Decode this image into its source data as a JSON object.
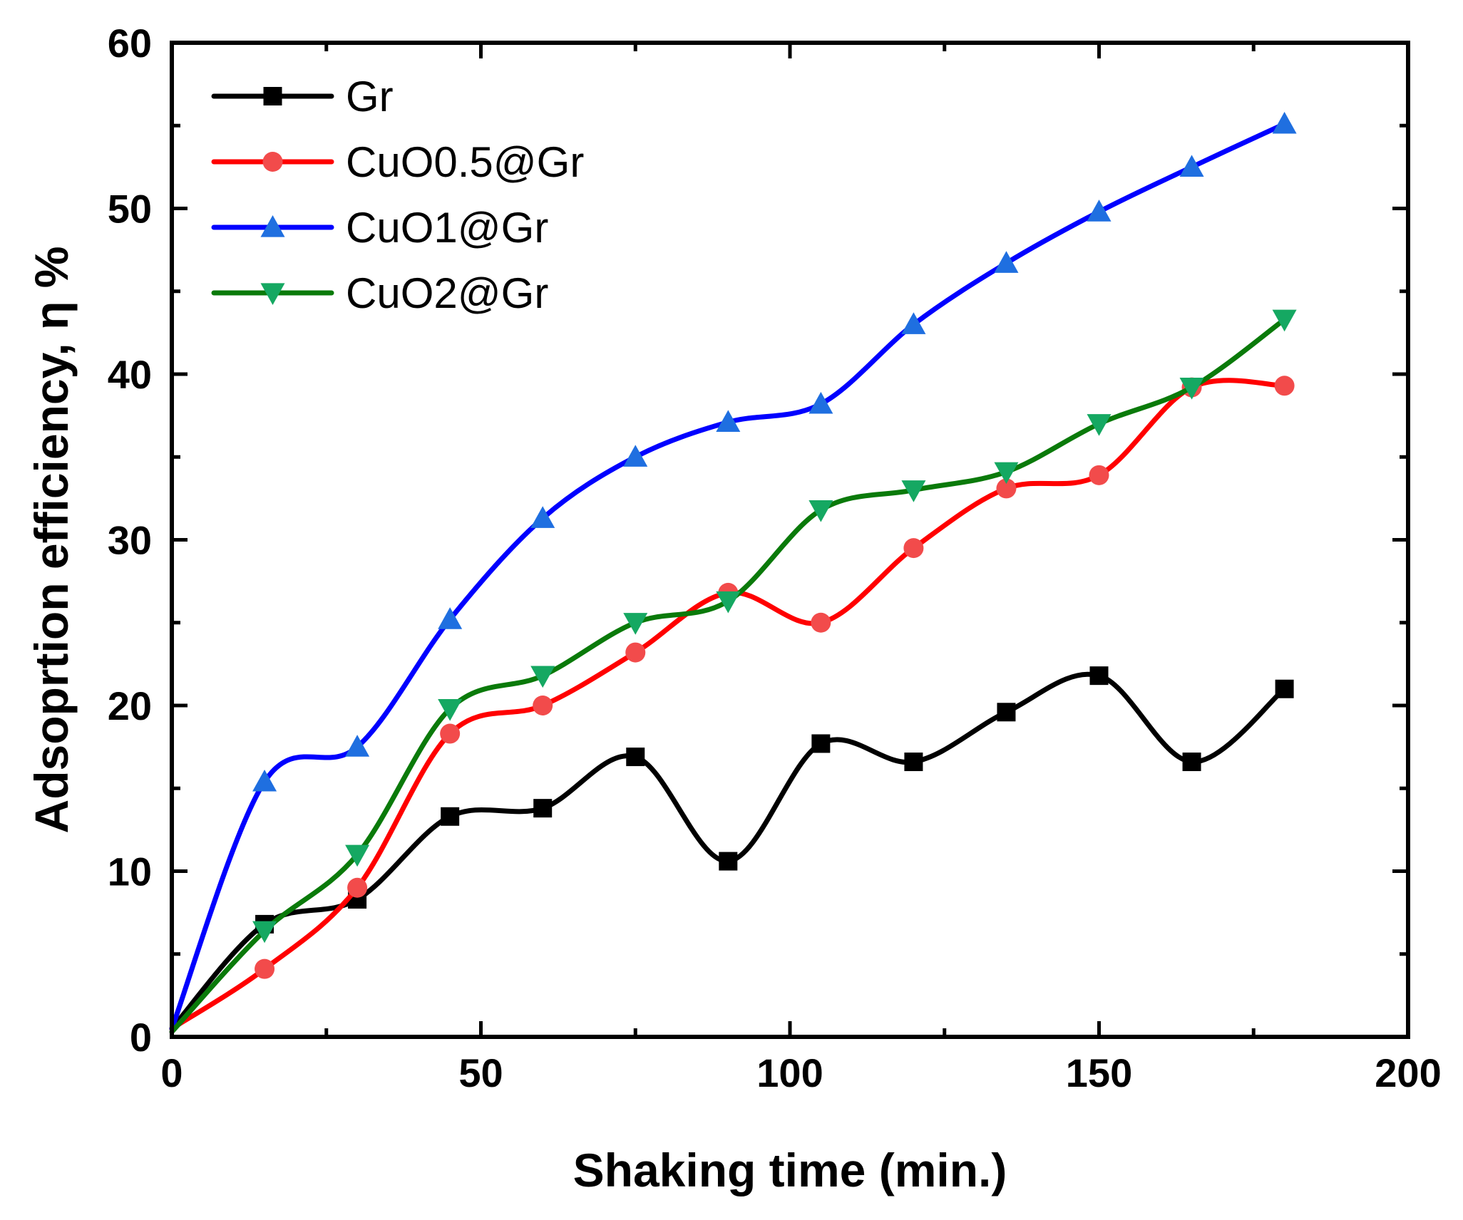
{
  "chart_data": {
    "type": "line",
    "title": "",
    "xlabel": "Shaking time (min.)",
    "ylabel": "Adsoprtion efficiency, η %",
    "xlim": [
      0,
      200
    ],
    "ylim": [
      0,
      60
    ],
    "xticks": [
      0,
      50,
      100,
      150,
      200
    ],
    "yticks": [
      0,
      10,
      20,
      30,
      40,
      50,
      60
    ],
    "x_minor_step": 25,
    "y_minor_step": 5,
    "legend_position": "top-left",
    "grid": false,
    "x": [
      0,
      15,
      30,
      45,
      60,
      75,
      90,
      105,
      120,
      135,
      150,
      165,
      180
    ],
    "series": [
      {
        "name": "Gr",
        "color": "#000000",
        "marker_color": "#000000",
        "marker": "square",
        "values": [
          0.5,
          6.8,
          8.3,
          13.3,
          13.8,
          16.9,
          10.6,
          17.7,
          16.6,
          19.6,
          21.8,
          16.6,
          21.0
        ]
      },
      {
        "name": "CuO0.5@Gr",
        "color": "#ff0000",
        "marker_color": "#f24b4b",
        "marker": "circle",
        "values": [
          0.5,
          4.1,
          9.0,
          18.3,
          20.0,
          23.2,
          26.8,
          25.0,
          29.5,
          33.1,
          33.9,
          39.2,
          39.3
        ]
      },
      {
        "name": "CuO1@Gr",
        "color": "#0000ff",
        "marker_color": "#1f6fe0",
        "marker": "triangle-up",
        "values": [
          0.5,
          15.4,
          17.5,
          25.2,
          31.3,
          35.0,
          37.1,
          38.2,
          43.0,
          46.7,
          49.8,
          52.5,
          55.1
        ]
      },
      {
        "name": "CuO2@Gr",
        "color": "#0a7a0a",
        "marker_color": "#15a862",
        "marker": "triangle-down",
        "values": [
          0.3,
          6.4,
          11.0,
          19.8,
          21.8,
          25.0,
          26.3,
          31.8,
          33.0,
          34.1,
          37.0,
          39.2,
          43.3
        ]
      }
    ]
  }
}
